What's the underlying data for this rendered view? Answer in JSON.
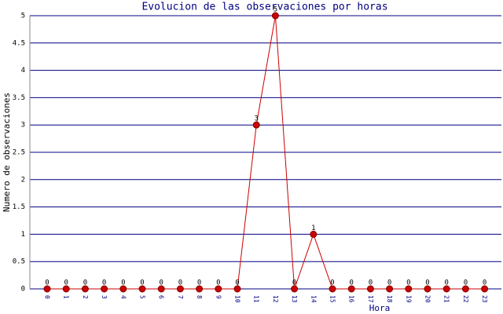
{
  "chart_data": {
    "type": "line",
    "title": "Evolucion de las observaciones por horas",
    "x_label": "Hora",
    "y_label": "Numero de observaciones",
    "categories": [
      "0",
      "1",
      "2",
      "3",
      "4",
      "5",
      "6",
      "7",
      "8",
      "9",
      "10",
      "11",
      "12",
      "13",
      "14",
      "15",
      "16",
      "17",
      "18",
      "19",
      "20",
      "21",
      "22",
      "23"
    ],
    "series": [
      {
        "name": "Observaciones",
        "color": "#cc0000",
        "values": [
          0,
          0,
          0,
          0,
          0,
          0,
          0,
          0,
          0,
          0,
          0,
          3,
          5,
          0,
          1,
          0,
          0,
          0,
          0,
          0,
          0,
          0,
          0,
          0
        ]
      }
    ],
    "ylim": [
      0,
      5
    ],
    "yticks": [
      0,
      0.5,
      1,
      1.5,
      2,
      2.5,
      3,
      3.5,
      4,
      4.5,
      5
    ],
    "grid": true,
    "grid_color": "#000080",
    "data_labels": true,
    "legend": false
  }
}
